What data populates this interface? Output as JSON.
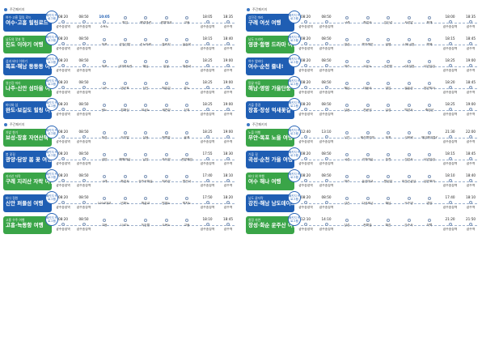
{
  "section_label": "주간패키지",
  "badge_tag": "패키지 프로그램",
  "left": [
    {
      "color": "blue",
      "sub": "여수·고흥 힐링 로드",
      "name": "여수·고흥 힐링로드",
      "stops": [
        {
          "t": "08:20",
          "n": "광주송정역"
        },
        {
          "t": "08:50",
          "n": "광주송정역"
        },
        {
          "t": "10:05",
          "n": "소록도"
        },
        {
          "t": "",
          "n": "쑥섬"
        },
        {
          "t": "",
          "n": "해양경관"
        },
        {
          "t": "",
          "n": "팔영대교"
        },
        {
          "t": "",
          "n": "고흥"
        },
        {
          "t": "18:05",
          "n": "광주송정역"
        },
        {
          "t": "18:35",
          "n": "광주역"
        }
      ]
    },
    {
      "color": "green",
      "sub": "남도의 맛과 멋",
      "name": "진도 이야기 여행",
      "stops": [
        {
          "t": "08:20",
          "n": "광주송정역"
        },
        {
          "t": "08:50",
          "n": "광주송정역"
        },
        {
          "t": "",
          "n": "목포"
        },
        {
          "t": "",
          "n": "운림산방"
        },
        {
          "t": "",
          "n": "진도타워"
        },
        {
          "t": "",
          "n": "쏠비치"
        },
        {
          "t": "",
          "n": "울돌목"
        },
        {
          "t": "18:15",
          "n": "광주송정역"
        },
        {
          "t": "18:40",
          "n": "광주역"
        }
      ]
    },
    {
      "color": "blue",
      "sub": "섬과 바다 이야기",
      "name": "목포·해남 동동동 여행",
      "stops": [
        {
          "t": "08:20",
          "n": "광주송정역"
        },
        {
          "t": "08:50",
          "n": "광주송정역"
        },
        {
          "t": "",
          "n": "목포"
        },
        {
          "t": "",
          "n": "근대역사관"
        },
        {
          "t": "",
          "n": "해남"
        },
        {
          "t": "",
          "n": "땅끝"
        },
        {
          "t": "",
          "n": "대흥사"
        },
        {
          "t": "18:25",
          "n": "광주송정역"
        },
        {
          "t": "19:00",
          "n": "광주역"
        }
      ]
    },
    {
      "color": "green",
      "sub": "영산강 따라",
      "name": "나주·신안 섬마을 여행",
      "stops": [
        {
          "t": "08:20",
          "n": "광주송정역"
        },
        {
          "t": "08:50",
          "n": "광주송정역"
        },
        {
          "t": "",
          "n": "나주"
        },
        {
          "t": "",
          "n": "영산포"
        },
        {
          "t": "",
          "n": "신안"
        },
        {
          "t": "",
          "n": "퍼플섬"
        },
        {
          "t": "",
          "n": "증도"
        },
        {
          "t": "18:25",
          "n": "광주송정역"
        },
        {
          "t": "19:00",
          "n": "광주역"
        }
      ]
    },
    {
      "color": "blue",
      "sub": "바다와 섬",
      "name": "완도·보길도 힐링 여행",
      "stops": [
        {
          "t": "08:20",
          "n": "광주송정역"
        },
        {
          "t": "08:50",
          "n": "광주송정역"
        },
        {
          "t": "",
          "n": "완도"
        },
        {
          "t": "",
          "n": "청해진"
        },
        {
          "t": "",
          "n": "보길도"
        },
        {
          "t": "",
          "n": "세연정"
        },
        {
          "t": "",
          "n": "신지"
        },
        {
          "t": "18:25",
          "n": "광주송정역"
        },
        {
          "t": "19:00",
          "n": "광주역"
        }
      ]
    },
    {
      "color": "green",
      "sub": "차밭 향기",
      "name": "보성·장흥 자연산책",
      "stops": [
        {
          "t": "08:20",
          "n": "광주송정역"
        },
        {
          "t": "08:50",
          "n": "광주송정역"
        },
        {
          "t": "",
          "n": "보성"
        },
        {
          "t": "",
          "n": "녹차밭"
        },
        {
          "t": "",
          "n": "장흥"
        },
        {
          "t": "",
          "n": "편백숲"
        },
        {
          "t": "",
          "n": "율포"
        },
        {
          "t": "18:25",
          "n": "광주송정역"
        },
        {
          "t": "19:00",
          "n": "광주역"
        }
      ]
    },
    {
      "color": "blue",
      "sub": "봄 꽃길",
      "name": "광양·담양 봄 꽃 여행",
      "stops": [
        {
          "t": "08:20",
          "n": "광주송정역"
        },
        {
          "t": "08:50",
          "n": "광주송정역"
        },
        {
          "t": "",
          "n": "광양"
        },
        {
          "t": "",
          "n": "매화마을"
        },
        {
          "t": "",
          "n": "담양"
        },
        {
          "t": "",
          "n": "죽녹원"
        },
        {
          "t": "",
          "n": "관방제림"
        },
        {
          "t": "17:55",
          "n": "광주송정역"
        },
        {
          "t": "18:30",
          "n": "광주역"
        }
      ]
    },
    {
      "color": "green",
      "sub": "지리산 자락",
      "name": "구례 지리산 자락 여행",
      "stops": [
        {
          "t": "08:20",
          "n": "광주송정역"
        },
        {
          "t": "08:50",
          "n": "광주송정역"
        },
        {
          "t": "",
          "n": "구례"
        },
        {
          "t": "",
          "n": "화엄사"
        },
        {
          "t": "",
          "n": "산수유마을"
        },
        {
          "t": "",
          "n": "지리산"
        },
        {
          "t": "",
          "n": "천은사"
        },
        {
          "t": "17:40",
          "n": "광주송정역"
        },
        {
          "t": "18:10",
          "n": "광주역"
        }
      ]
    },
    {
      "color": "blue",
      "sub": "바다 정원",
      "name": "신안 퍼플섬 여행",
      "stops": [
        {
          "t": "08:20",
          "n": "광주송정역"
        },
        {
          "t": "08:50",
          "n": "광주송정역"
        },
        {
          "t": "",
          "n": "1004대교"
        },
        {
          "t": "",
          "n": "안좌도"
        },
        {
          "t": "",
          "n": "퍼플교"
        },
        {
          "t": "",
          "n": "반월도"
        },
        {
          "t": "",
          "n": "박지도"
        },
        {
          "t": "17:50",
          "n": "광주송정역"
        },
        {
          "t": "18:20",
          "n": "광주역"
        }
      ]
    },
    {
      "color": "green",
      "sub": "고흥 우주 여행",
      "name": "고흥·녹동항 여행",
      "stops": [
        {
          "t": "08:20",
          "n": "광주송정역"
        },
        {
          "t": "08:50",
          "n": "광주송정역"
        },
        {
          "t": "",
          "n": "고흥"
        },
        {
          "t": "",
          "n": "나로도"
        },
        {
          "t": "",
          "n": "녹동항"
        },
        {
          "t": "",
          "n": "소록도"
        },
        {
          "t": "",
          "n": "고흥"
        },
        {
          "t": "18:10",
          "n": "광주송정역"
        },
        {
          "t": "18:45",
          "n": "광주역"
        }
      ]
    }
  ],
  "right": [
    {
      "color": "blue",
      "sub": "섬진강 따라",
      "name": "구례 여섯 여행",
      "stops": [
        {
          "t": "08:20",
          "n": "광주송정역"
        },
        {
          "t": "08:50",
          "n": "광주송정역"
        },
        {
          "t": "",
          "n": "구례"
        },
        {
          "t": "",
          "n": "화엄사"
        },
        {
          "t": "",
          "n": "섬진강"
        },
        {
          "t": "",
          "n": "사성암"
        },
        {
          "t": "",
          "n": "화개"
        },
        {
          "t": "18:00",
          "n": "광주송정역"
        },
        {
          "t": "18:35",
          "n": "광주역"
        }
      ]
    },
    {
      "color": "green",
      "sub": "남도 드라마",
      "name": "영광·함평 드라마 여행",
      "stops": [
        {
          "t": "08:20",
          "n": "광주송정역"
        },
        {
          "t": "08:50",
          "n": "광주송정역"
        },
        {
          "t": "",
          "n": "영광"
        },
        {
          "t": "",
          "n": "백수해안"
        },
        {
          "t": "",
          "n": "함평"
        },
        {
          "t": "",
          "n": "나비공원"
        },
        {
          "t": "",
          "n": "백제"
        },
        {
          "t": "18:15",
          "n": "광주송정역"
        },
        {
          "t": "18:45",
          "n": "광주역"
        }
      ]
    },
    {
      "color": "blue",
      "sub": "여수 밤바다",
      "name": "여수·순천 즐내!",
      "stops": [
        {
          "t": "08:20",
          "n": "광주송정역"
        },
        {
          "t": "08:50",
          "n": "광주송정역"
        },
        {
          "t": "",
          "n": "여수"
        },
        {
          "t": "",
          "n": "오동도"
        },
        {
          "t": "",
          "n": "순천만"
        },
        {
          "t": "",
          "n": "국가정원"
        },
        {
          "t": "",
          "n": "낙안읍성"
        },
        {
          "t": "18:25",
          "n": "광주송정역"
        },
        {
          "t": "19:00",
          "n": "광주역"
        }
      ]
    },
    {
      "color": "green",
      "sub": "땅끝 마을",
      "name": "해남·영암 가을단풍 여행",
      "stops": [
        {
          "t": "08:20",
          "n": "광주송정역"
        },
        {
          "t": "08:50",
          "n": "광주송정역"
        },
        {
          "t": "",
          "n": "해남"
        },
        {
          "t": "",
          "n": "대흥사"
        },
        {
          "t": "",
          "n": "영암"
        },
        {
          "t": "",
          "n": "월출산"
        },
        {
          "t": "",
          "n": "왕인박사"
        },
        {
          "t": "18:20",
          "n": "광주송정역"
        },
        {
          "t": "18:45",
          "n": "광주역"
        }
      ]
    },
    {
      "color": "blue",
      "sub": "가을 풍경",
      "name": "장흥·장성 억새꽃길",
      "stops": [
        {
          "t": "08:20",
          "n": "광주송정역"
        },
        {
          "t": "08:50",
          "n": "광주송정역"
        },
        {
          "t": "",
          "n": "장흥"
        },
        {
          "t": "",
          "n": "천관산"
        },
        {
          "t": "",
          "n": "장성"
        },
        {
          "t": "",
          "n": "백양사"
        },
        {
          "t": "",
          "n": "축령산"
        },
        {
          "t": "18:25",
          "n": "광주송정역"
        },
        {
          "t": "19:00",
          "n": "광주역"
        }
      ]
    },
    {
      "color": "green",
      "sub": "노을 여행",
      "name": "무안·목포 노을 여행",
      "stops": [
        {
          "t": "12:40",
          "n": "광주송정역"
        },
        {
          "t": "13:10",
          "n": "광주송정역"
        },
        {
          "t": "",
          "n": "무안"
        },
        {
          "t": "",
          "n": "회산백련지"
        },
        {
          "t": "",
          "n": "목포"
        },
        {
          "t": "",
          "n": "갓바위"
        },
        {
          "t": "",
          "n": "해상케이블카"
        },
        {
          "t": "21:30",
          "n": "광주송정역"
        },
        {
          "t": "22:00",
          "n": "광주역"
        }
      ]
    },
    {
      "color": "blue",
      "sub": "가을 길",
      "name": "곡성·순천 가을 여행",
      "stops": [
        {
          "t": "08:20",
          "n": "광주송정역"
        },
        {
          "t": "08:50",
          "n": "광주송정역"
        },
        {
          "t": "",
          "n": "곡성"
        },
        {
          "t": "",
          "n": "기차마을"
        },
        {
          "t": "",
          "n": "순천"
        },
        {
          "t": "",
          "n": "선암사"
        },
        {
          "t": "",
          "n": "낙안읍성"
        },
        {
          "t": "18:15",
          "n": "광주송정역"
        },
        {
          "t": "18:45",
          "n": "광주역"
        }
      ]
    },
    {
      "color": "green",
      "sub": "바다 위 여행",
      "name": "여수 해나 여행",
      "stops": [
        {
          "t": "08:20",
          "n": "광주송정역"
        },
        {
          "t": "08:50",
          "n": "광주송정역"
        },
        {
          "t": "",
          "n": "여수"
        },
        {
          "t": "",
          "n": "돌산대교"
        },
        {
          "t": "",
          "n": "향일암"
        },
        {
          "t": "",
          "n": "이순신광장"
        },
        {
          "t": "",
          "n": "낭만포차"
        },
        {
          "t": "18:10",
          "n": "광주송정역"
        },
        {
          "t": "18:40",
          "n": "광주역"
        }
      ]
    },
    {
      "color": "blue",
      "sub": "남도 끝자락",
      "name": "강진·해남 남도데이트",
      "stops": [
        {
          "t": "08:20",
          "n": "광주송정역"
        },
        {
          "t": "08:50",
          "n": "광주송정역"
        },
        {
          "t": "",
          "n": "강진"
        },
        {
          "t": "",
          "n": "다산초당"
        },
        {
          "t": "",
          "n": "해남"
        },
        {
          "t": "",
          "n": "우수영"
        },
        {
          "t": "",
          "n": "명량"
        },
        {
          "t": "17:40",
          "n": "광주송정역"
        },
        {
          "t": "18:10",
          "n": "광주역"
        }
      ]
    },
    {
      "color": "green",
      "sub": "청정 자연",
      "name": "장성·화순 운주산 여행",
      "stops": [
        {
          "t": "12:10",
          "n": "광주송정역"
        },
        {
          "t": "14:10",
          "n": "광주송정역"
        },
        {
          "t": "",
          "n": "장성"
        },
        {
          "t": "",
          "n": "편백숲"
        },
        {
          "t": "",
          "n": "화순"
        },
        {
          "t": "",
          "n": "운주사"
        },
        {
          "t": "",
          "n": "적벽"
        },
        {
          "t": "21:20",
          "n": "광주송정역"
        },
        {
          "t": "21:50",
          "n": "광주역"
        }
      ]
    }
  ]
}
